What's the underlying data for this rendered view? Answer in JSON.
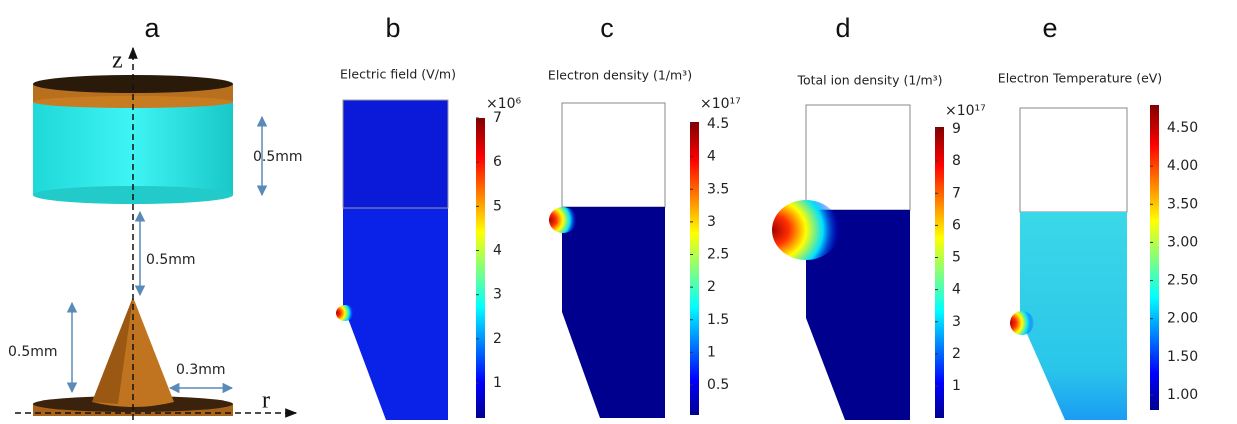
{
  "panels": [
    {
      "letter": "a",
      "axis_z": "z",
      "axis_r": "r",
      "dim_cylinder": "0.5mm",
      "dim_gap": "0.5mm",
      "dim_cone_height": "0.5mm",
      "dim_cone_radius": "0.3mm"
    },
    {
      "letter": "b",
      "title": "Electric field (V/m)",
      "multiplier": "×10⁶",
      "ticks": [
        "7",
        "6",
        "5",
        "4",
        "3",
        "2",
        "1"
      ]
    },
    {
      "letter": "c",
      "title": "Electron density (1/m³)",
      "multiplier": "×10¹⁷",
      "ticks": [
        "4.5",
        "4",
        "3.5",
        "3",
        "2.5",
        "2",
        "1.5",
        "1",
        "0.5"
      ]
    },
    {
      "letter": "d",
      "title": "Total ion density (1/m³)",
      "multiplier": "×10¹⁷",
      "ticks": [
        "9",
        "8",
        "7",
        "6",
        "5",
        "4",
        "3",
        "2",
        "1"
      ]
    },
    {
      "letter": "e",
      "title": "Electron Temperature (eV)",
      "ticks": [
        "4.50",
        "4.00",
        "3.50",
        "3.00",
        "2.50",
        "2.00",
        "1.50",
        "1.00"
      ]
    }
  ]
}
